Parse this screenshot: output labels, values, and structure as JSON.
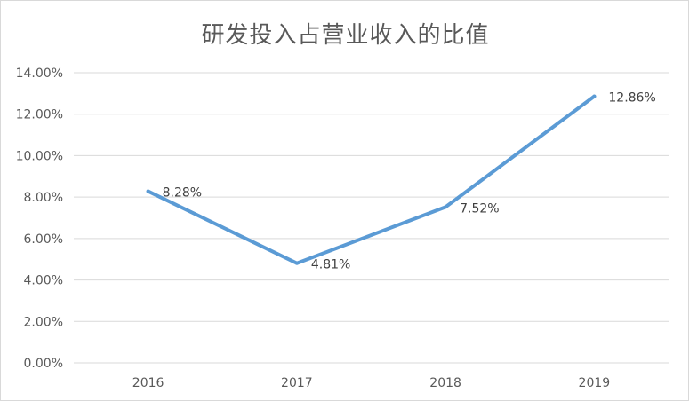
{
  "chart_data": {
    "type": "line",
    "title": "研发投入占营业收入的比值",
    "categories": [
      "2016",
      "2017",
      "2018",
      "2019"
    ],
    "series": [
      {
        "values": [
          8.28,
          4.81,
          7.52,
          12.86
        ],
        "labels": [
          "8.28%",
          "4.81%",
          "7.52%",
          "12.86%"
        ]
      }
    ],
    "ylim": [
      0,
      14
    ],
    "y_ticks": [
      0,
      2,
      4,
      6,
      8,
      10,
      12,
      14
    ],
    "y_tick_labels": [
      "0.00%",
      "2.00%",
      "4.00%",
      "6.00%",
      "8.00%",
      "10.00%",
      "12.00%",
      "14.00%"
    ],
    "grid": true,
    "legend": "none",
    "colors": {
      "line": "#5b9bd5",
      "grid": "#d9d9d9",
      "text": "#595959"
    }
  }
}
